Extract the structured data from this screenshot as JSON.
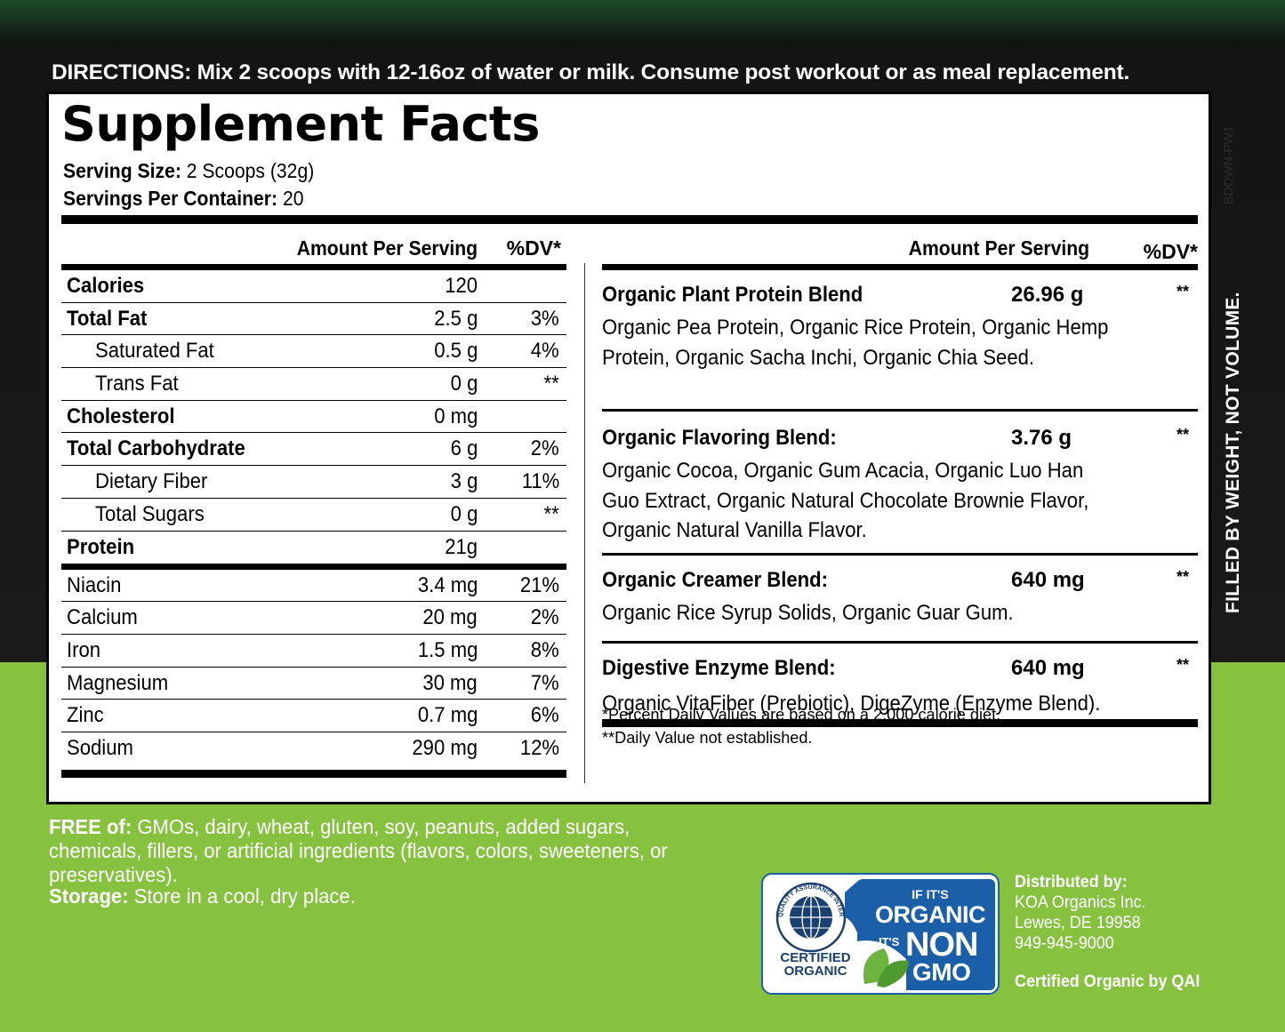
{
  "directions": "DIRECTIONS: Mix 2 scoops with 12-16oz of water or milk. Consume post workout or as meal replacement.",
  "title": "Supplement Facts",
  "serving": {
    "size_label": "Serving Size:",
    "size_value": "2 Scoops (32g)",
    "per_container_label": "Servings Per Container:",
    "per_container_value": "20"
  },
  "left_table": {
    "amount_header": "Amount Per Serving",
    "dv_header": "%DV*",
    "rows": [
      {
        "name": "Calories",
        "amount": "120",
        "dv": ""
      },
      {
        "name": "Total Fat",
        "amount": "2.5 g",
        "dv": "3%"
      },
      {
        "name": "Saturated Fat",
        "amount": "0.5 g",
        "dv": "4%"
      },
      {
        "name": "Trans Fat",
        "amount": "0 g",
        "dv": "**"
      },
      {
        "name": "Cholesterol",
        "amount": "0 mg",
        "dv": ""
      },
      {
        "name": "Total Carbohydrate",
        "amount": "6 g",
        "dv": "2%"
      },
      {
        "name": "Dietary Fiber",
        "amount": "3 g",
        "dv": "11%"
      },
      {
        "name": "Total Sugars",
        "amount": "0 g",
        "dv": "**"
      },
      {
        "name": "Protein",
        "amount": "21g",
        "dv": ""
      },
      {
        "name": "Niacin",
        "amount": "3.4 mg",
        "dv": "21%"
      },
      {
        "name": "Calcium",
        "amount": "20 mg",
        "dv": "2%"
      },
      {
        "name": "Iron",
        "amount": "1.5 mg",
        "dv": "8%"
      },
      {
        "name": "Magnesium",
        "amount": "30 mg",
        "dv": "7%"
      },
      {
        "name": "Zinc",
        "amount": "0.7 mg",
        "dv": "6%"
      },
      {
        "name": "Sodium",
        "amount": "290 mg",
        "dv": "12%"
      }
    ]
  },
  "right_table": {
    "amount_header": "Amount Per Serving",
    "dv_header": "%DV*",
    "blends": [
      {
        "name": "Organic Plant Protein Blend",
        "amount": "26.96 g",
        "dv": "**",
        "ingredients": "Organic Pea Protein, Organic Rice Protein, Organic Hemp Protein, Organic Sacha Inchi, Organic Chia Seed."
      },
      {
        "name": "Organic Flavoring Blend:",
        "amount": "3.76 g",
        "dv": "**",
        "ingredients": "Organic Cocoa, Organic Gum Acacia, Organic Luo Han Guo Extract, Organic Natural Chocolate Brownie Flavor, Organic Natural Vanilla Flavor."
      },
      {
        "name": "Organic Creamer Blend:",
        "amount": "640 mg",
        "dv": "**",
        "ingredients": "Organic Rice Syrup Solids, Organic Guar Gum."
      },
      {
        "name": "Digestive Enzyme Blend:",
        "amount": "640 mg",
        "dv": "**",
        "ingredients": "Organic VitaFiber (Prebiotic), DigeZyme (Enzyme Blend)."
      }
    ],
    "footnote1": "*Percent Daily Values are based on a 2,000 calorie diet.",
    "footnote2": "**Daily Value not established."
  },
  "side_text": "FILLED BY WEIGHT, NOT VOLUME.",
  "lot_code": "BDOWN-PW1",
  "free_of": {
    "label": "FREE of:",
    "text": " GMOs, dairy, wheat, gluten, soy, peanuts, added sugars, chemicals, fillers, or artificial ingredients (flavors, colors, sweeteners, or preservatives)."
  },
  "storage": {
    "label": "Storage:",
    "text": " Store in a cool, dry place."
  },
  "badge": {
    "ring_text": "QUALITY ASSURANCE INTERNATIONAL",
    "certified": "CERTIFIED",
    "organic": "ORGANIC",
    "if_its": "IF IT'S",
    "organic_big": "ORGANIC",
    "its": "IT'S",
    "non": "NON",
    "gmo": "GMO"
  },
  "distributor": {
    "label": "Distributed by:",
    "line1": "KOA Organics Inc.",
    "line2": "Lewes, DE 19958",
    "phone": "949-945-9000",
    "certified_by": "Certified Organic by QAI"
  },
  "colors": {
    "dark_green_top": "#1e4d2b",
    "lime_green": "#86c240",
    "badge_blue": "#1b5fa8",
    "leaf_green": "#6cb33f"
  }
}
